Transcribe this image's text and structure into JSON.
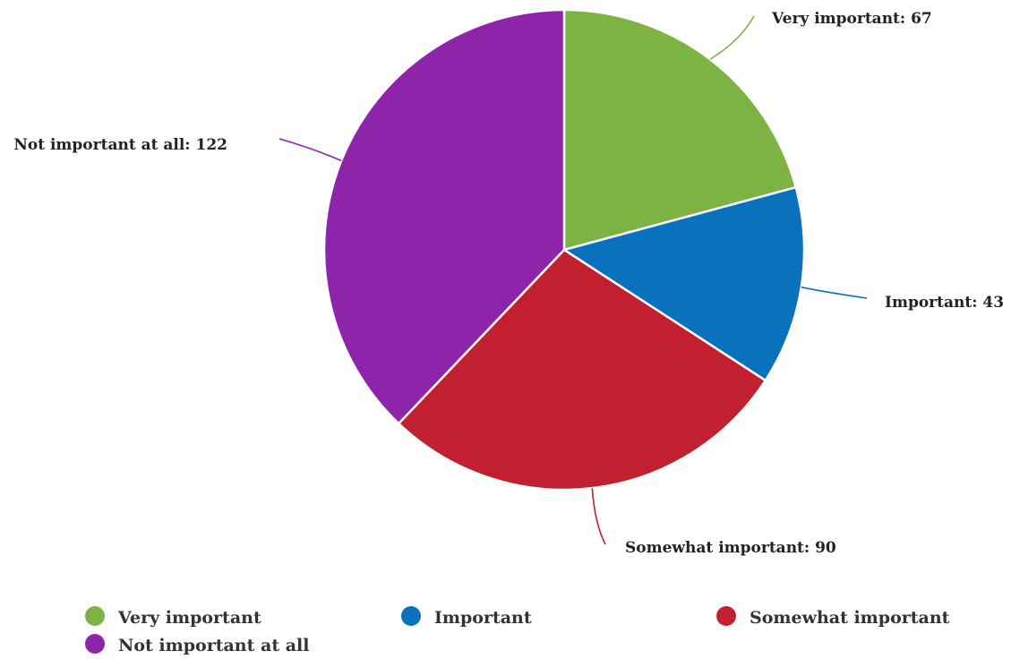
{
  "chart_data": {
    "type": "pie",
    "title": "",
    "categories": [
      "Very important",
      "Important",
      "Somewhat important",
      "Not important at all"
    ],
    "values": [
      67,
      43,
      90,
      122
    ],
    "colors": [
      "#7cb342",
      "#0a72bd",
      "#c21f30",
      "#8e24aa"
    ],
    "data_labels": [
      "Very important: 67",
      "Important: 43",
      "Somewhat important: 90",
      "Not important at all: 122"
    ],
    "legend": {
      "position": "bottom",
      "items": [
        "Very important",
        "Important",
        "Somewhat important",
        "Not important at all"
      ]
    }
  }
}
